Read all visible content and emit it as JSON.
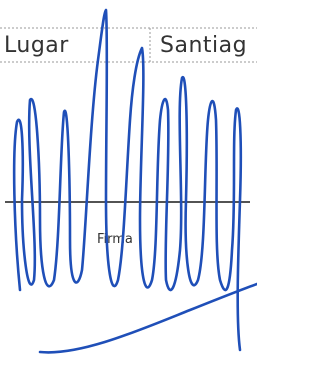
{
  "field": {
    "label": "Lugar",
    "value": "Santiag"
  },
  "signature_label": "Firma"
}
